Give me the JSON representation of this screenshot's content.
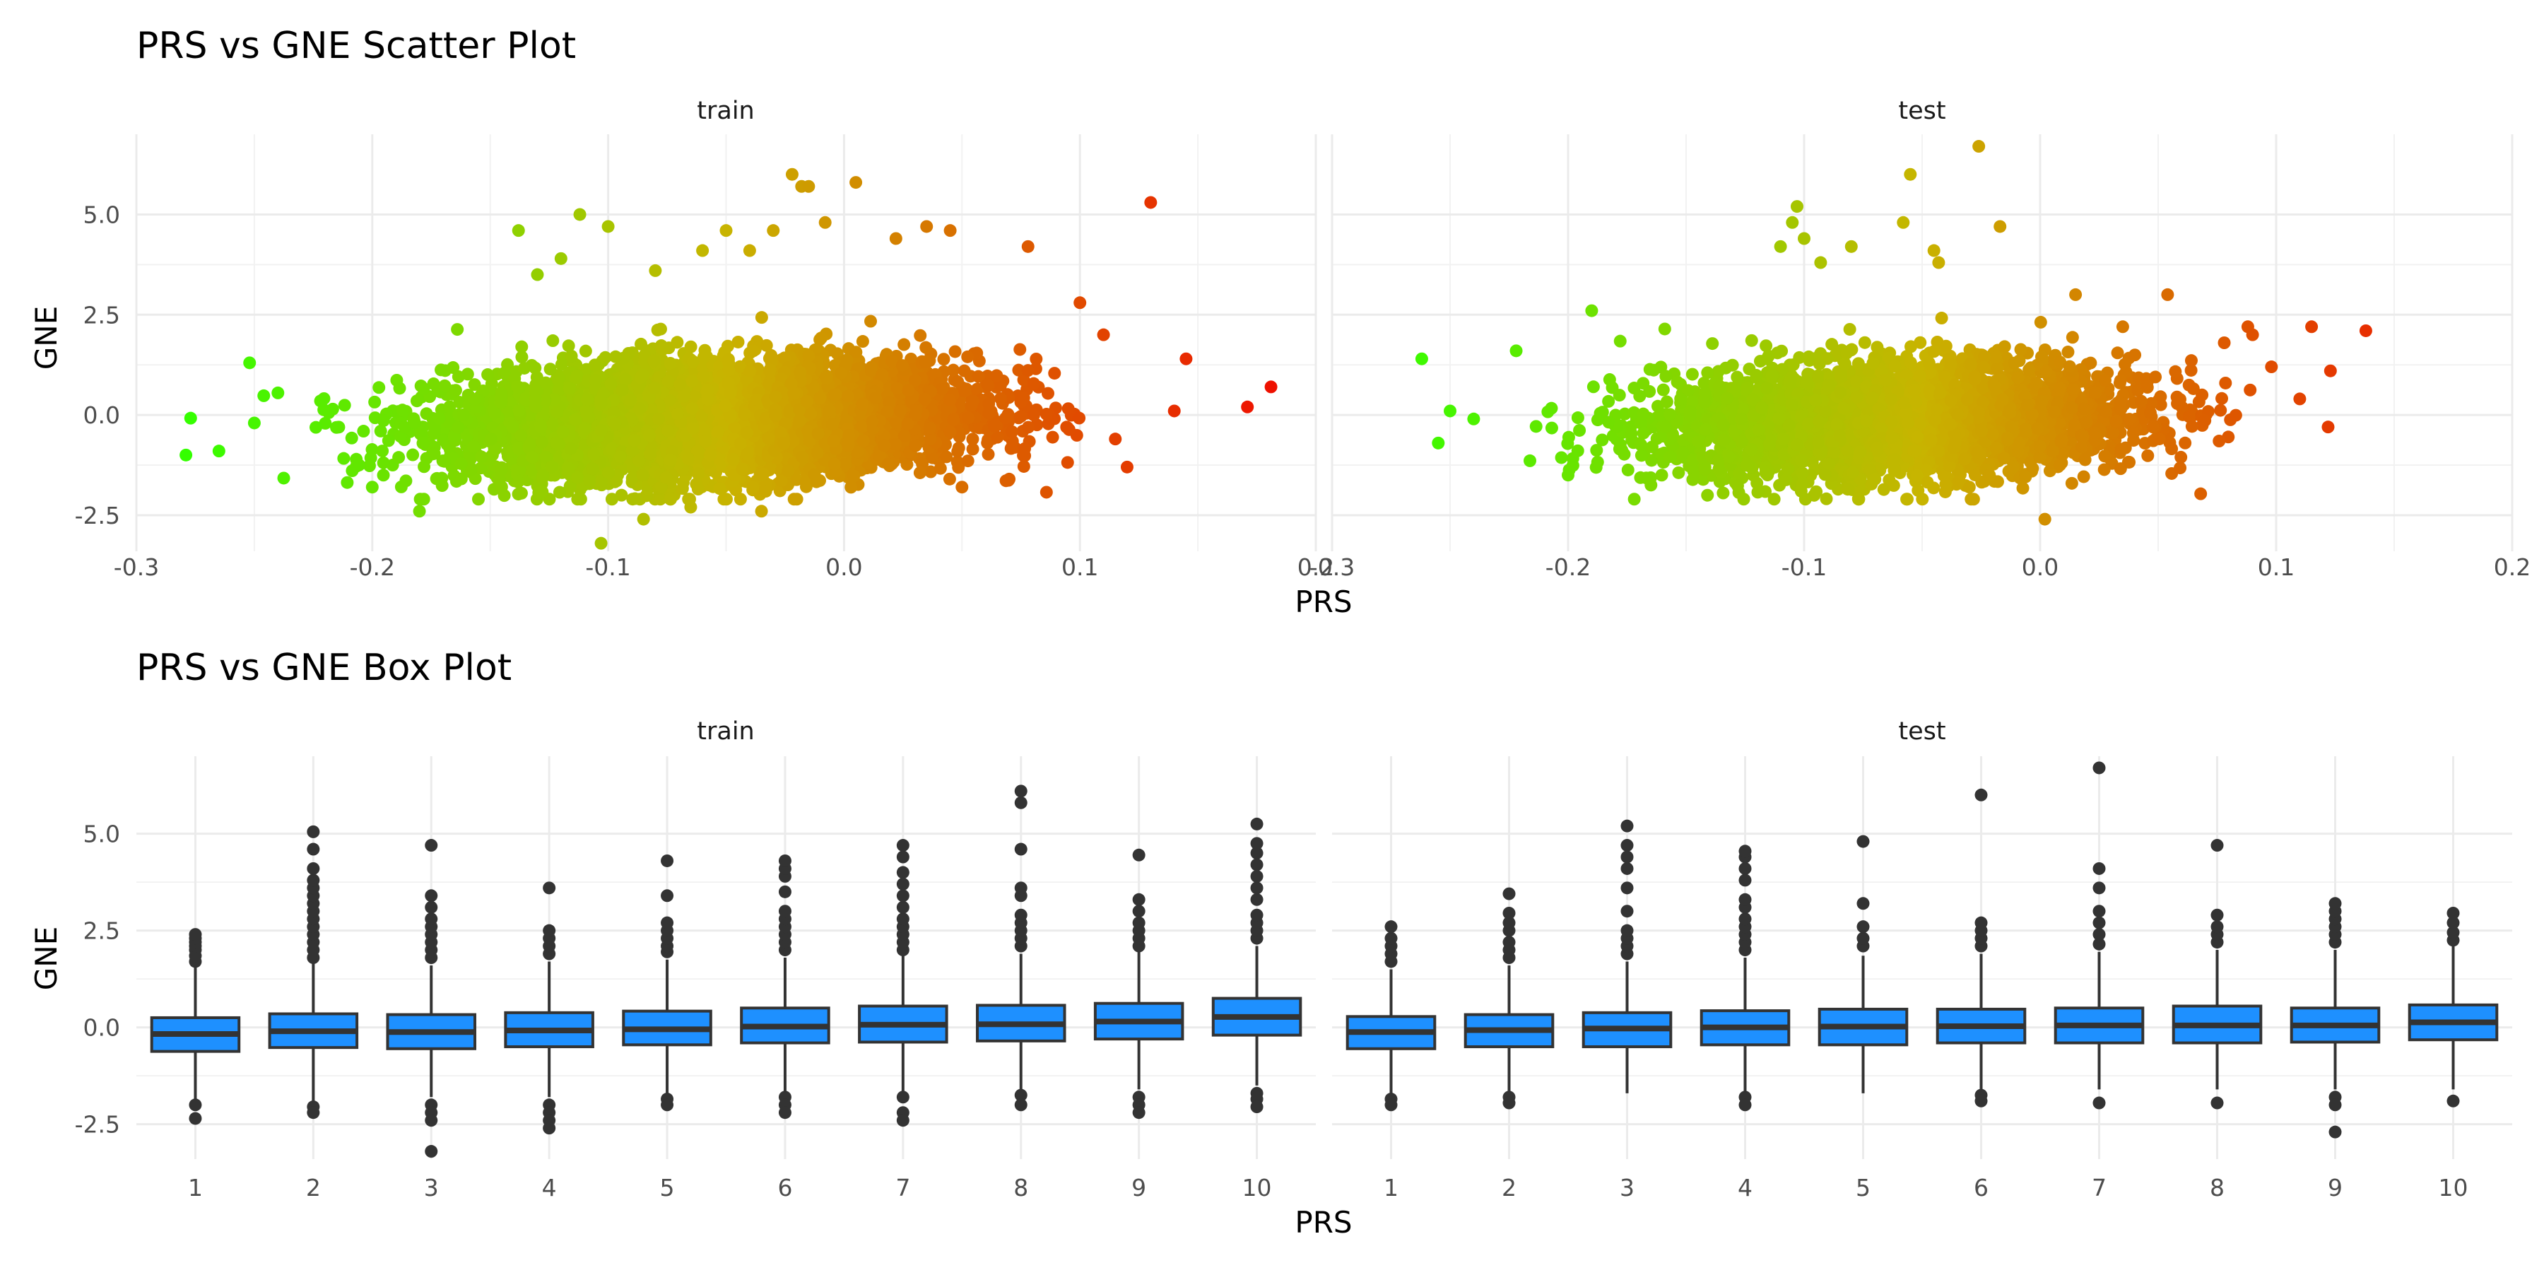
{
  "chart_data": [
    {
      "type": "scatter",
      "title": "PRS vs GNE Scatter Plot",
      "xlabel": "PRS",
      "ylabel": "GNE",
      "xlim": [
        -0.3,
        0.2
      ],
      "ylim": [
        -3.4,
        7.0
      ],
      "x_ticks": [
        "-0.3",
        "-0.2",
        "-0.1",
        "0.0",
        "0.1",
        "0.2"
      ],
      "y_ticks": [
        "-2.5",
        "0.0",
        "2.5",
        "5.0"
      ],
      "grid": true,
      "color_scale": {
        "low": "#33ff00",
        "mid": "#c8b400",
        "high": "#ee1100",
        "mapped_to": "PRS"
      },
      "panels": [
        {
          "name": "train",
          "points": [
            [
              -0.279,
              -1.0
            ],
            [
              -0.277,
              -0.08
            ],
            [
              -0.265,
              -0.9
            ],
            [
              -0.252,
              1.3
            ],
            [
              -0.246,
              0.48
            ],
            [
              -0.24,
              0.55
            ],
            [
              -0.25,
              -0.2
            ],
            [
              -0.138,
              4.6
            ],
            [
              -0.12,
              3.9
            ],
            [
              -0.112,
              5.0
            ],
            [
              -0.1,
              4.7
            ],
            [
              -0.13,
              3.5
            ],
            [
              -0.08,
              3.6
            ],
            [
              -0.06,
              4.1
            ],
            [
              -0.05,
              4.6
            ],
            [
              -0.04,
              4.1
            ],
            [
              -0.03,
              4.6
            ],
            [
              -0.022,
              6.0
            ],
            [
              -0.018,
              5.7
            ],
            [
              -0.015,
              5.7
            ],
            [
              -0.008,
              4.8
            ],
            [
              0.005,
              5.8
            ],
            [
              0.022,
              4.4
            ],
            [
              0.035,
              4.7
            ],
            [
              0.045,
              4.6
            ],
            [
              0.078,
              4.2
            ],
            [
              0.13,
              5.3
            ],
            [
              0.145,
              1.4
            ],
            [
              0.14,
              0.1
            ],
            [
              0.171,
              0.2
            ],
            [
              0.181,
              0.7
            ],
            [
              0.12,
              -1.3
            ],
            [
              0.1,
              2.8
            ],
            [
              0.11,
              2.0
            ],
            [
              0.115,
              -0.6
            ],
            [
              -0.103,
              -3.2
            ],
            [
              -0.085,
              -2.6
            ],
            [
              -0.065,
              -2.3
            ],
            [
              -0.035,
              -2.4
            ],
            [
              -0.18,
              -2.4
            ],
            [
              -0.2,
              -1.8
            ],
            [
              -0.155,
              -2.1
            ],
            [
              0.05,
              -1.8
            ],
            [
              0.07,
              -1.6
            ]
          ]
        },
        {
          "name": "test",
          "points": [
            [
              -0.262,
              1.4
            ],
            [
              -0.255,
              -0.7
            ],
            [
              -0.25,
              0.1
            ],
            [
              -0.24,
              -0.1
            ],
            [
              -0.222,
              1.6
            ],
            [
              -0.19,
              2.6
            ],
            [
              -0.103,
              5.2
            ],
            [
              -0.105,
              4.8
            ],
            [
              -0.11,
              4.2
            ],
            [
              -0.1,
              4.4
            ],
            [
              -0.093,
              3.8
            ],
            [
              -0.08,
              4.2
            ],
            [
              -0.058,
              4.8
            ],
            [
              -0.055,
              6.0
            ],
            [
              -0.045,
              4.1
            ],
            [
              -0.043,
              3.8
            ],
            [
              -0.026,
              6.7
            ],
            [
              -0.017,
              4.7
            ],
            [
              0.015,
              3.0
            ],
            [
              0.035,
              2.2
            ],
            [
              0.054,
              3.0
            ],
            [
              0.078,
              1.8
            ],
            [
              0.088,
              2.2
            ],
            [
              0.09,
              2.0
            ],
            [
              0.098,
              1.2
            ],
            [
              0.115,
              2.2
            ],
            [
              0.123,
              1.1
            ],
            [
              0.138,
              2.1
            ],
            [
              0.122,
              -0.3
            ],
            [
              0.11,
              0.4
            ],
            [
              0.002,
              -2.6
            ],
            [
              -0.03,
              -1.8
            ],
            [
              -0.07,
              -1.6
            ],
            [
              -0.12,
              -1.7
            ],
            [
              -0.2,
              -1.5
            ]
          ]
        }
      ]
    },
    {
      "type": "box",
      "title": "PRS vs GNE Box Plot",
      "xlabel": "PRS",
      "ylabel": "GNE",
      "ylim": [
        -3.4,
        7.0
      ],
      "y_ticks": [
        "-2.5",
        "0.0",
        "2.5",
        "5.0"
      ],
      "categories": [
        "1",
        "2",
        "3",
        "4",
        "5",
        "6",
        "7",
        "8",
        "9",
        "10"
      ],
      "box_color": "#1e90ff",
      "grid": true,
      "panels": [
        {
          "name": "train",
          "boxes": [
            {
              "q1": -0.62,
              "median": -0.17,
              "q3": 0.25,
              "lo": -1.9,
              "hi": 1.55,
              "outliers": [
                1.7,
                1.85,
                2.0,
                2.1,
                2.2,
                2.3,
                2.4,
                -2.0,
                -2.35
              ]
            },
            {
              "q1": -0.52,
              "median": -0.1,
              "q3": 0.35,
              "lo": -2.0,
              "hi": 1.65,
              "outliers": [
                1.8,
                2.0,
                2.2,
                2.4,
                2.6,
                2.8,
                3.0,
                3.2,
                3.4,
                3.6,
                3.8,
                4.1,
                4.6,
                5.05,
                -2.05,
                -2.2
              ]
            },
            {
              "q1": -0.55,
              "median": -0.12,
              "q3": 0.33,
              "lo": -1.8,
              "hi": 1.6,
              "outliers": [
                1.8,
                2.0,
                2.2,
                2.4,
                2.6,
                2.8,
                3.1,
                3.4,
                4.7,
                -2.0,
                -2.2,
                -2.4,
                -3.2
              ]
            },
            {
              "q1": -0.5,
              "median": -0.08,
              "q3": 0.38,
              "lo": -1.8,
              "hi": 1.7,
              "outliers": [
                1.9,
                2.1,
                2.3,
                2.5,
                3.6,
                -2.0,
                -2.2,
                -2.4,
                -2.6
              ]
            },
            {
              "q1": -0.45,
              "median": -0.05,
              "q3": 0.42,
              "lo": -1.75,
              "hi": 1.75,
              "outliers": [
                1.95,
                2.1,
                2.3,
                2.5,
                2.7,
                3.4,
                4.3,
                -1.85,
                -2.0
              ]
            },
            {
              "q1": -0.4,
              "median": 0.02,
              "q3": 0.5,
              "lo": -1.7,
              "hi": 1.8,
              "outliers": [
                2.0,
                2.2,
                2.4,
                2.6,
                2.8,
                3.0,
                3.5,
                3.9,
                4.1,
                4.3,
                -1.8,
                -2.0,
                -2.2
              ]
            },
            {
              "q1": -0.38,
              "median": 0.07,
              "q3": 0.55,
              "lo": -1.65,
              "hi": 1.85,
              "outliers": [
                2.0,
                2.2,
                2.4,
                2.6,
                2.8,
                3.1,
                3.4,
                3.7,
                4.0,
                4.4,
                4.7,
                -1.8,
                -2.2,
                -2.4
              ]
            },
            {
              "q1": -0.35,
              "median": 0.08,
              "q3": 0.57,
              "lo": -1.6,
              "hi": 1.9,
              "outliers": [
                2.1,
                2.3,
                2.5,
                2.7,
                2.9,
                3.4,
                3.6,
                4.6,
                5.8,
                6.1,
                -1.75,
                -2.0
              ]
            },
            {
              "q1": -0.3,
              "median": 0.15,
              "q3": 0.62,
              "lo": -1.6,
              "hi": 1.95,
              "outliers": [
                2.1,
                2.3,
                2.5,
                2.7,
                3.0,
                3.3,
                4.45,
                -1.8,
                -2.0,
                -2.2
              ]
            },
            {
              "q1": -0.2,
              "median": 0.27,
              "q3": 0.75,
              "lo": -1.5,
              "hi": 2.1,
              "outliers": [
                2.3,
                2.5,
                2.7,
                2.9,
                3.3,
                3.6,
                3.9,
                4.2,
                4.5,
                4.75,
                5.25,
                -1.7,
                -1.85,
                -2.05
              ]
            }
          ]
        },
        {
          "name": "test",
          "boxes": [
            {
              "q1": -0.55,
              "median": -0.12,
              "q3": 0.28,
              "lo": -1.7,
              "hi": 1.5,
              "outliers": [
                1.7,
                1.9,
                2.1,
                2.3,
                2.6,
                -1.85,
                -2.0
              ]
            },
            {
              "q1": -0.5,
              "median": -0.07,
              "q3": 0.33,
              "lo": -1.7,
              "hi": 1.6,
              "outliers": [
                1.8,
                2.0,
                2.2,
                2.5,
                2.7,
                2.95,
                3.45,
                -1.8,
                -1.95
              ]
            },
            {
              "q1": -0.5,
              "median": -0.03,
              "q3": 0.38,
              "lo": -1.7,
              "hi": 1.7,
              "outliers": [
                1.9,
                2.1,
                2.3,
                2.5,
                3.0,
                3.6,
                4.1,
                4.4,
                4.7,
                5.2
              ]
            },
            {
              "q1": -0.45,
              "median": 0.0,
              "q3": 0.43,
              "lo": -1.7,
              "hi": 1.8,
              "outliers": [
                2.0,
                2.2,
                2.4,
                2.6,
                2.8,
                3.1,
                3.3,
                3.8,
                4.1,
                4.4,
                4.55,
                -1.8,
                -2.0
              ]
            },
            {
              "q1": -0.45,
              "median": 0.02,
              "q3": 0.47,
              "lo": -1.7,
              "hi": 1.85,
              "outliers": [
                2.1,
                2.3,
                2.6,
                3.2,
                4.8
              ]
            },
            {
              "q1": -0.4,
              "median": 0.03,
              "q3": 0.47,
              "lo": -1.6,
              "hi": 1.9,
              "outliers": [
                2.1,
                2.3,
                2.5,
                2.7,
                6.0,
                -1.75,
                -1.9
              ]
            },
            {
              "q1": -0.4,
              "median": 0.05,
              "q3": 0.5,
              "lo": -1.6,
              "hi": 1.95,
              "outliers": [
                2.15,
                2.4,
                2.7,
                3.0,
                3.6,
                4.1,
                6.7,
                -1.95
              ]
            },
            {
              "q1": -0.4,
              "median": 0.05,
              "q3": 0.55,
              "lo": -1.6,
              "hi": 2.0,
              "outliers": [
                2.2,
                2.4,
                2.6,
                2.9,
                4.7,
                -1.95
              ]
            },
            {
              "q1": -0.38,
              "median": 0.05,
              "q3": 0.5,
              "lo": -1.6,
              "hi": 2.0,
              "outliers": [
                2.2,
                2.4,
                2.6,
                2.8,
                3.0,
                3.2,
                -1.8,
                -2.0,
                -2.7
              ]
            },
            {
              "q1": -0.32,
              "median": 0.13,
              "q3": 0.58,
              "lo": -1.6,
              "hi": 2.1,
              "outliers": [
                2.25,
                2.45,
                2.7,
                2.95,
                -1.9
              ]
            }
          ]
        }
      ]
    }
  ]
}
